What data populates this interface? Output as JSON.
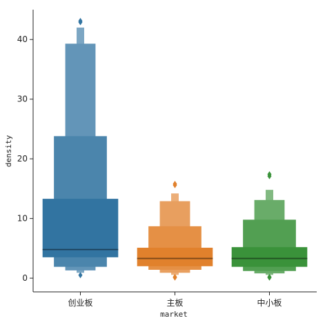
{
  "chart_data": {
    "type": "boxen",
    "title": "",
    "xlabel": "market",
    "ylabel": "density",
    "ylim": [
      -2.3,
      45
    ],
    "yticks": [
      0,
      10,
      20,
      30,
      40
    ],
    "grid": false,
    "categories": [
      {
        "name": "创业板",
        "color": "#3274a1",
        "median": 4.8,
        "levels": [
          {
            "lo": 3.5,
            "hi": 13.3
          },
          {
            "lo": 1.9,
            "hi": 23.8
          },
          {
            "lo": 1.3,
            "hi": 39.3
          },
          {
            "lo": 0.9,
            "hi": 42.0
          }
        ],
        "outliers": [
          0.5,
          42.9,
          43.1
        ]
      },
      {
        "name": "主板",
        "color": "#e1812c",
        "median": 3.3,
        "levels": [
          {
            "lo": 2.0,
            "hi": 5.1
          },
          {
            "lo": 1.4,
            "hi": 8.7
          },
          {
            "lo": 0.9,
            "hi": 12.9
          },
          {
            "lo": 0.55,
            "hi": 14.2
          },
          {
            "lo": 0.35,
            "hi": 15.0
          }
        ],
        "outliers": [
          0.1,
          0.2,
          15.6,
          15.8
        ]
      },
      {
        "name": "中小板",
        "color": "#3a923a",
        "median": 3.3,
        "levels": [
          {
            "lo": 1.9,
            "hi": 5.2
          },
          {
            "lo": 1.2,
            "hi": 9.8
          },
          {
            "lo": 0.8,
            "hi": 13.1
          },
          {
            "lo": 0.55,
            "hi": 14.8
          },
          {
            "lo": 0.35,
            "hi": 16.0
          }
        ],
        "outliers": [
          0.1,
          0.2,
          17.1,
          17.4
        ]
      }
    ]
  }
}
